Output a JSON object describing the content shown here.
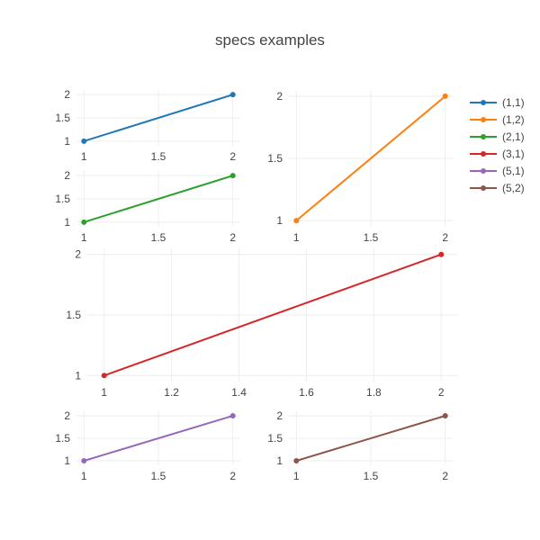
{
  "chart_data": {
    "title": "specs examples",
    "type": "line",
    "subplots": [
      {
        "name": "(1,1)",
        "color": "#1f77b4",
        "x": [
          1,
          2
        ],
        "y": [
          1,
          2
        ],
        "xrange": [
          0.95,
          2.05
        ],
        "yrange": [
          0.9,
          2.1
        ],
        "xticks": [
          1,
          1.5,
          2
        ],
        "yticks": [
          1,
          1.5,
          2
        ],
        "xlabels": [
          "1",
          "1.5",
          "2"
        ],
        "ylabels": [
          "1",
          "1.5",
          "2"
        ],
        "grid": true
      },
      {
        "name": "(1,2)",
        "color": "#ff7f0e",
        "x": [
          1,
          2
        ],
        "y": [
          1,
          2
        ],
        "xrange": [
          0.95,
          2.05
        ],
        "yrange": [
          0.95,
          2.05
        ],
        "xticks": [
          1,
          1.5,
          2
        ],
        "yticks": [
          1,
          1.5,
          2
        ],
        "xlabels": [
          "1",
          "1.5",
          "2"
        ],
        "ylabels": [
          "1",
          "1.5",
          "2"
        ],
        "grid": true
      },
      {
        "name": "(2,1)",
        "color": "#2ca02c",
        "x": [
          1,
          2
        ],
        "y": [
          1,
          2
        ],
        "xrange": [
          0.95,
          2.05
        ],
        "yrange": [
          0.9,
          2.1
        ],
        "xticks": [
          1,
          1.5,
          2
        ],
        "yticks": [
          1,
          1.5,
          2
        ],
        "xlabels": [
          "1",
          "1.5",
          "2"
        ],
        "ylabels": [
          "1",
          "1.5",
          "2"
        ],
        "grid": true
      },
      {
        "name": "(3,1)",
        "color": "#d62728",
        "x": [
          1,
          2
        ],
        "y": [
          1,
          2
        ],
        "xrange": [
          0.95,
          2.05
        ],
        "yrange": [
          0.95,
          2.05
        ],
        "xticks": [
          1,
          1.2,
          1.4,
          1.6,
          1.8,
          2
        ],
        "yticks": [
          1,
          1.5,
          2
        ],
        "xlabels": [
          "1",
          "1.2",
          "1.4",
          "1.6",
          "1.8",
          "2"
        ],
        "ylabels": [
          "1",
          "1.5",
          "2"
        ],
        "grid": true
      },
      {
        "name": "(5,1)",
        "color": "#9467bd",
        "x": [
          1,
          2
        ],
        "y": [
          1,
          2
        ],
        "xrange": [
          0.95,
          2.05
        ],
        "yrange": [
          0.9,
          2.1
        ],
        "xticks": [
          1,
          1.5,
          2
        ],
        "yticks": [
          1,
          1.5,
          2
        ],
        "xlabels": [
          "1",
          "1.5",
          "2"
        ],
        "ylabels": [
          "1",
          "1.5",
          "2"
        ],
        "grid": true
      },
      {
        "name": "(5,2)",
        "color": "#8c564b",
        "x": [
          1,
          2
        ],
        "y": [
          1,
          2
        ],
        "xrange": [
          0.95,
          2.05
        ],
        "yrange": [
          0.9,
          2.1
        ],
        "xticks": [
          1,
          1.5,
          2
        ],
        "yticks": [
          1,
          1.5,
          2
        ],
        "xlabels": [
          "1",
          "1.5",
          "2"
        ],
        "ylabels": [
          "1",
          "1.5",
          "2"
        ],
        "grid": true
      }
    ],
    "legend": {
      "placement": "right",
      "items": [
        {
          "label": "(1,1)",
          "color": "#1f77b4"
        },
        {
          "label": "(1,2)",
          "color": "#ff7f0e"
        },
        {
          "label": "(2,1)",
          "color": "#2ca02c"
        },
        {
          "label": "(3,1)",
          "color": "#d62728"
        },
        {
          "label": "(5,1)",
          "color": "#9467bd"
        },
        {
          "label": "(5,2)",
          "color": "#8c564b"
        }
      ]
    }
  }
}
